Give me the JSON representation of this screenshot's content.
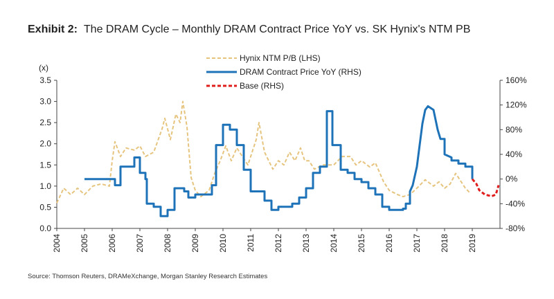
{
  "title_prefix": "Exhibit 2:",
  "title_text": "The DRAM Cycle – Monthly DRAM Contract Price YoY vs. SK Hynix's NTM PB",
  "source": "Source: Thomson Reuters, DRAMeXchange, Morgan Stanley Research Estimates",
  "chart_data": {
    "type": "line",
    "title": "The DRAM Cycle – Monthly DRAM Contract Price YoY vs. SK Hynix's NTM PB",
    "ylabel_left": "(x)",
    "x_ticks": [
      "2004",
      "2005",
      "2006",
      "2007",
      "2008",
      "2009",
      "2010",
      "2011",
      "2012",
      "2013",
      "2014",
      "2015",
      "2016",
      "2017",
      "2018",
      "2019"
    ],
    "xlim": [
      2004,
      2020
    ],
    "ylim_left": [
      0,
      3.5
    ],
    "yticks_left": [
      "0.0",
      "0.5",
      "1.0",
      "1.5",
      "2.0",
      "2.5",
      "3.0",
      "3.5"
    ],
    "ylim_right": [
      -80,
      160
    ],
    "yticks_right": [
      "-80%",
      "-40%",
      "0%",
      "40%",
      "80%",
      "120%",
      "160%"
    ],
    "legend_position": "top-center",
    "colors": {
      "pb": "#e6c47e",
      "dram": "#1e73b8",
      "base": "#e01e1e"
    },
    "series": [
      {
        "name": "Hynix NTM P/B (LHS)",
        "axis": "left",
        "style": "dashed",
        "points": [
          [
            2004.0,
            0.6
          ],
          [
            2004.25,
            0.95
          ],
          [
            2004.5,
            0.8
          ],
          [
            2004.75,
            0.95
          ],
          [
            2005.0,
            0.8
          ],
          [
            2005.3,
            1.0
          ],
          [
            2005.6,
            1.05
          ],
          [
            2005.9,
            1.0
          ],
          [
            2006.0,
            1.6
          ],
          [
            2006.1,
            2.05
          ],
          [
            2006.3,
            1.7
          ],
          [
            2006.5,
            1.9
          ],
          [
            2006.8,
            1.85
          ],
          [
            2007.0,
            1.95
          ],
          [
            2007.2,
            1.7
          ],
          [
            2007.5,
            1.8
          ],
          [
            2007.8,
            2.35
          ],
          [
            2007.9,
            2.6
          ],
          [
            2008.1,
            2.1
          ],
          [
            2008.3,
            2.7
          ],
          [
            2008.45,
            2.5
          ],
          [
            2008.55,
            3.0
          ],
          [
            2008.7,
            2.4
          ],
          [
            2008.85,
            1.2
          ],
          [
            2009.0,
            0.9
          ],
          [
            2009.2,
            0.75
          ],
          [
            2009.5,
            0.9
          ],
          [
            2009.7,
            1.3
          ],
          [
            2009.9,
            1.6
          ],
          [
            2010.1,
            1.95
          ],
          [
            2010.3,
            1.6
          ],
          [
            2010.5,
            1.9
          ],
          [
            2010.7,
            1.7
          ],
          [
            2010.9,
            1.5
          ],
          [
            2011.0,
            1.7
          ],
          [
            2011.2,
            2.1
          ],
          [
            2011.3,
            2.5
          ],
          [
            2011.5,
            1.8
          ],
          [
            2011.8,
            1.4
          ],
          [
            2012.0,
            1.6
          ],
          [
            2012.2,
            1.5
          ],
          [
            2012.4,
            1.8
          ],
          [
            2012.6,
            1.6
          ],
          [
            2012.8,
            1.9
          ],
          [
            2012.95,
            1.6
          ],
          [
            2013.1,
            1.6
          ],
          [
            2013.3,
            1.4
          ],
          [
            2013.6,
            1.5
          ],
          [
            2014.0,
            1.5
          ],
          [
            2014.3,
            1.7
          ],
          [
            2014.6,
            1.7
          ],
          [
            2014.8,
            1.5
          ],
          [
            2015.0,
            1.6
          ],
          [
            2015.3,
            1.45
          ],
          [
            2015.5,
            1.55
          ],
          [
            2015.8,
            1.1
          ],
          [
            2016.0,
            0.9
          ],
          [
            2016.3,
            0.8
          ],
          [
            2016.5,
            0.75
          ],
          [
            2016.75,
            0.8
          ],
          [
            2017.0,
            0.95
          ],
          [
            2017.3,
            1.15
          ],
          [
            2017.6,
            1.0
          ],
          [
            2017.8,
            1.1
          ],
          [
            2018.0,
            0.95
          ],
          [
            2018.2,
            1.05
          ],
          [
            2018.4,
            1.3
          ],
          [
            2018.6,
            1.1
          ],
          [
            2018.75,
            0.95
          ],
          [
            2018.9,
            0.85
          ]
        ]
      },
      {
        "name": "DRAM Contract Price YoY (RHS)",
        "axis": "right",
        "style": "solid",
        "points": [
          [
            2005.0,
            0
          ],
          [
            2006.1,
            0
          ],
          [
            2006.1,
            -10
          ],
          [
            2006.3,
            -10
          ],
          [
            2006.3,
            20
          ],
          [
            2006.8,
            20
          ],
          [
            2006.8,
            35
          ],
          [
            2007.0,
            35
          ],
          [
            2007.0,
            10
          ],
          [
            2007.2,
            10
          ],
          [
            2007.2,
            0
          ],
          [
            2007.25,
            0
          ],
          [
            2007.25,
            -40
          ],
          [
            2007.5,
            -40
          ],
          [
            2007.5,
            -45
          ],
          [
            2007.75,
            -45
          ],
          [
            2007.75,
            -60
          ],
          [
            2008.0,
            -60
          ],
          [
            2008.0,
            -50
          ],
          [
            2008.25,
            -50
          ],
          [
            2008.25,
            -15
          ],
          [
            2008.6,
            -15
          ],
          [
            2008.6,
            -20
          ],
          [
            2008.75,
            -20
          ],
          [
            2008.75,
            -30
          ],
          [
            2009.0,
            -30
          ],
          [
            2009.0,
            -25
          ],
          [
            2009.6,
            -25
          ],
          [
            2009.6,
            -10
          ],
          [
            2009.75,
            -10
          ],
          [
            2009.75,
            55
          ],
          [
            2010.0,
            55
          ],
          [
            2010.0,
            88
          ],
          [
            2010.25,
            88
          ],
          [
            2010.25,
            80
          ],
          [
            2010.5,
            80
          ],
          [
            2010.5,
            55
          ],
          [
            2010.75,
            55
          ],
          [
            2010.75,
            15
          ],
          [
            2011.0,
            15
          ],
          [
            2011.0,
            -20
          ],
          [
            2011.5,
            -20
          ],
          [
            2011.5,
            -35
          ],
          [
            2011.75,
            -35
          ],
          [
            2011.75,
            -50
          ],
          [
            2012.0,
            -50
          ],
          [
            2012.0,
            -45
          ],
          [
            2012.5,
            -45
          ],
          [
            2012.5,
            -40
          ],
          [
            2012.75,
            -40
          ],
          [
            2012.75,
            -30
          ],
          [
            2013.0,
            -30
          ],
          [
            2013.0,
            -15
          ],
          [
            2013.25,
            -15
          ],
          [
            2013.25,
            10
          ],
          [
            2013.5,
            10
          ],
          [
            2013.5,
            20
          ],
          [
            2013.75,
            20
          ],
          [
            2013.75,
            110
          ],
          [
            2013.95,
            110
          ],
          [
            2013.95,
            55
          ],
          [
            2014.25,
            55
          ],
          [
            2014.25,
            15
          ],
          [
            2014.5,
            15
          ],
          [
            2014.5,
            10
          ],
          [
            2014.75,
            10
          ],
          [
            2014.75,
            0
          ],
          [
            2015.0,
            0
          ],
          [
            2015.0,
            -5
          ],
          [
            2015.25,
            -5
          ],
          [
            2015.25,
            -15
          ],
          [
            2015.5,
            -15
          ],
          [
            2015.5,
            -25
          ],
          [
            2015.75,
            -25
          ],
          [
            2015.75,
            -45
          ],
          [
            2016.0,
            -45
          ],
          [
            2016.0,
            -50
          ],
          [
            2016.5,
            -50
          ],
          [
            2016.5,
            -48
          ],
          [
            2016.6,
            -48
          ],
          [
            2016.6,
            -40
          ],
          [
            2016.75,
            -40
          ],
          [
            2016.75,
            -20
          ],
          [
            2016.85,
            -10
          ],
          [
            2017.0,
            20
          ],
          [
            2017.1,
            55
          ],
          [
            2017.2,
            90
          ],
          [
            2017.3,
            112
          ],
          [
            2017.4,
            118
          ],
          [
            2017.6,
            112
          ],
          [
            2017.75,
            80
          ],
          [
            2017.85,
            65
          ],
          [
            2018.0,
            65
          ],
          [
            2018.0,
            40
          ],
          [
            2018.25,
            35
          ],
          [
            2018.25,
            30
          ],
          [
            2018.5,
            30
          ],
          [
            2018.5,
            25
          ],
          [
            2018.75,
            25
          ],
          [
            2018.75,
            20
          ],
          [
            2019.0,
            20
          ],
          [
            2019.0,
            0
          ]
        ]
      },
      {
        "name": "Base (RHS)",
        "axis": "right",
        "style": "dashed",
        "points": [
          [
            2019.0,
            0
          ],
          [
            2019.15,
            -8
          ],
          [
            2019.25,
            -18
          ],
          [
            2019.45,
            -25
          ],
          [
            2019.7,
            -28
          ],
          [
            2019.85,
            -25
          ],
          [
            2019.95,
            -10
          ]
        ]
      }
    ]
  }
}
